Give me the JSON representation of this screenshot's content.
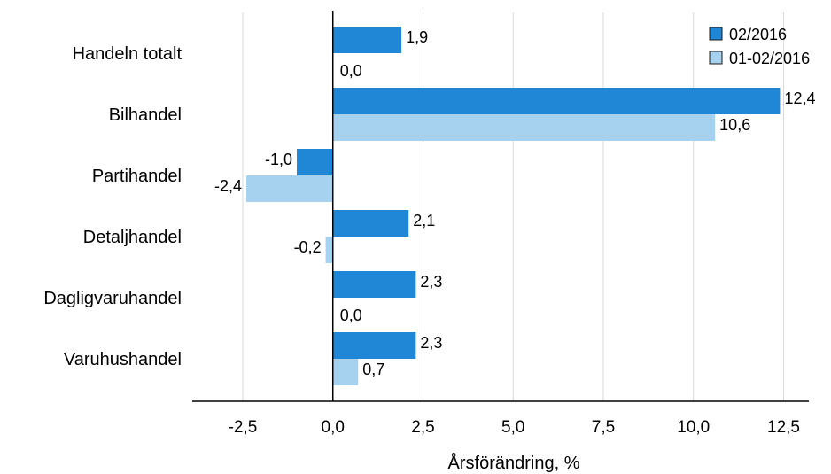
{
  "chart_data": {
    "type": "bar",
    "orientation": "horizontal",
    "categories": [
      "Handeln totalt",
      "Bilhandel",
      "Partihandel",
      "Detaljhandel",
      "Dagligvaruhandel",
      "Varuhushandel"
    ],
    "series": [
      {
        "name": "02/2016",
        "color": "#1f87d6",
        "values": [
          1.9,
          12.4,
          -1.0,
          2.1,
          2.3,
          2.3
        ],
        "labels": [
          "1,9",
          "12,4",
          "-1,0",
          "2,1",
          "2,3",
          "2,3"
        ]
      },
      {
        "name": "01-02/2016",
        "color": "#a6d2f0",
        "values": [
          0.0,
          10.6,
          -2.4,
          -0.2,
          0.0,
          0.7
        ],
        "labels": [
          "0,0",
          "10,6",
          "-2,4",
          "-0,2",
          "0,0",
          "0,7"
        ]
      }
    ],
    "xlabel": "Årsförändring, %",
    "xlim": [
      -3.9,
      13.2
    ],
    "xticks": [
      -2.5,
      0.0,
      2.5,
      5.0,
      7.5,
      10.0,
      12.5
    ],
    "xtick_labels": [
      "-2,5",
      "0,0",
      "2,5",
      "5,0",
      "7,5",
      "10,0",
      "12,5"
    ],
    "grid": "vertical",
    "legend_position": "top-right"
  }
}
